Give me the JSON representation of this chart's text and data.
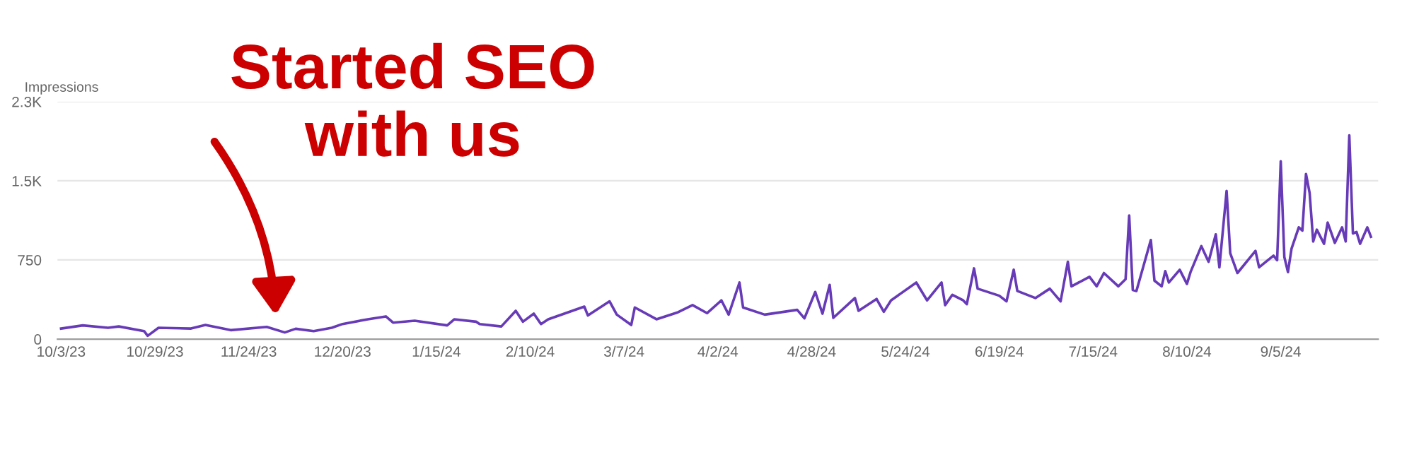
{
  "chart_data": {
    "type": "line",
    "ylabel": "Impressions",
    "grid": "y",
    "marker": "none",
    "line_style": "solid",
    "annotations": [
      "Started SEO\nwith us"
    ],
    "xlim": [
      "2023-10-02",
      "2024-10-02"
    ],
    "ylim": [
      0,
      2250
    ],
    "yticks": [
      0,
      750,
      {
        "value": 1500,
        "label": "1.5K"
      },
      {
        "value": 2250,
        "label": "2.3K"
      }
    ],
    "xticks": [
      {
        "value": "2023-10-03",
        "label": "10/3/23"
      },
      {
        "value": "2023-10-29",
        "label": "10/29/23"
      },
      {
        "value": "2023-11-24",
        "label": "11/24/23"
      },
      {
        "value": "2023-12-20",
        "label": "12/20/23"
      },
      {
        "value": "2024-01-15",
        "label": "1/15/24"
      },
      {
        "value": "2024-02-10",
        "label": "2/10/24"
      },
      {
        "value": "2024-03-07",
        "label": "3/7/24"
      },
      {
        "value": "2024-04-02",
        "label": "4/2/24"
      },
      {
        "value": "2024-04-28",
        "label": "4/28/24"
      },
      {
        "value": "2024-05-24",
        "label": "5/24/24"
      },
      {
        "value": "2024-06-19",
        "label": "6/19/24"
      },
      {
        "value": "2024-07-15",
        "label": "7/15/24"
      },
      {
        "value": "2024-08-10",
        "label": "8/10/24"
      },
      {
        "value": "2024-09-05",
        "label": "9/5/24"
      }
    ],
    "x": [
      "2023-10-03",
      "2023-10-09",
      "2023-10-16",
      "2023-10-19",
      "2023-10-26",
      "2023-10-27",
      "2023-10-30",
      "2023-11-08",
      "2023-11-12",
      "2023-11-19",
      "2023-11-29",
      "2023-12-04",
      "2023-12-07",
      "2023-12-12",
      "2023-12-17",
      "2023-12-20",
      "2023-12-27",
      "2024-01-01",
      "2024-01-03",
      "2024-01-09",
      "2024-01-18",
      "2024-01-20",
      "2024-01-26",
      "2024-01-27",
      "2024-02-02",
      "2024-02-06",
      "2024-02-08",
      "2024-02-11",
      "2024-02-13",
      "2024-02-15",
      "2024-02-25",
      "2024-02-26",
      "2024-03-03",
      "2024-03-05",
      "2024-03-09",
      "2024-03-10",
      "2024-03-16",
      "2024-03-22",
      "2024-03-26",
      "2024-03-30",
      "2024-04-03",
      "2024-04-05",
      "2024-04-08",
      "2024-04-09",
      "2024-04-15",
      "2024-04-24",
      "2024-04-26",
      "2024-04-29",
      "2024-05-01",
      "2024-05-03",
      "2024-05-04",
      "2024-05-10",
      "2024-05-11",
      "2024-05-16",
      "2024-05-18",
      "2024-05-20",
      "2024-05-27",
      "2024-05-30",
      "2024-06-03",
      "2024-06-04",
      "2024-06-06",
      "2024-06-09",
      "2024-06-10",
      "2024-06-12",
      "2024-06-13",
      "2024-06-19",
      "2024-06-21",
      "2024-06-23",
      "2024-06-24",
      "2024-06-29",
      "2024-07-03",
      "2024-07-06",
      "2024-07-08",
      "2024-07-09",
      "2024-07-14",
      "2024-07-16",
      "2024-07-18",
      "2024-07-22",
      "2024-07-24",
      "2024-07-25",
      "2024-07-26",
      "2024-07-27",
      "2024-07-31",
      "2024-08-01",
      "2024-08-03",
      "2024-08-04",
      "2024-08-05",
      "2024-08-08",
      "2024-08-10",
      "2024-08-11",
      "2024-08-14",
      "2024-08-16",
      "2024-08-18",
      "2024-08-19",
      "2024-08-21",
      "2024-08-22",
      "2024-08-24",
      "2024-08-29",
      "2024-08-30",
      "2024-09-03",
      "2024-09-04",
      "2024-09-05",
      "2024-09-06",
      "2024-09-07",
      "2024-09-08",
      "2024-09-10",
      "2024-09-11",
      "2024-09-12",
      "2024-09-13",
      "2024-09-14",
      "2024-09-15",
      "2024-09-17",
      "2024-09-18",
      "2024-09-20",
      "2024-09-22",
      "2024-09-23",
      "2024-09-24",
      "2024-09-25",
      "2024-09-26",
      "2024-09-27",
      "2024-09-29",
      "2024-09-30"
    ],
    "series": [
      {
        "color": "#673ab7",
        "values": [
          100,
          130,
          107,
          120,
          76,
          31,
          107,
          100,
          134,
          85,
          116,
          63,
          98,
          76,
          107,
          143,
          188,
          215,
          156,
          174,
          130,
          188,
          165,
          143,
          120,
          268,
          165,
          241,
          143,
          188,
          308,
          224,
          358,
          232,
          134,
          300,
          188,
          255,
          322,
          246,
          367,
          232,
          536,
          300,
          232,
          277,
          197,
          447,
          241,
          514,
          201,
          389,
          268,
          380,
          259,
          367,
          536,
          367,
          536,
          322,
          420,
          367,
          331,
          670,
          478,
          411,
          358,
          657,
          456,
          389,
          478,
          358,
          733,
          500,
          590,
          500,
          626,
          500,
          568,
          1171,
          465,
          456,
          939,
          554,
          500,
          644,
          536,
          657,
          523,
          635,
          881,
          733,
          992,
          680,
          1404,
          814,
          626,
          836,
          680,
          791,
          747,
          1685,
          778,
          635,
          858,
          1059,
          1028,
          1565,
          1386,
          925,
          1037,
          903,
          1104,
          912,
          1059,
          925,
          1931,
          1001,
          1015,
          903,
          1059,
          970
        ]
      }
    ]
  }
}
